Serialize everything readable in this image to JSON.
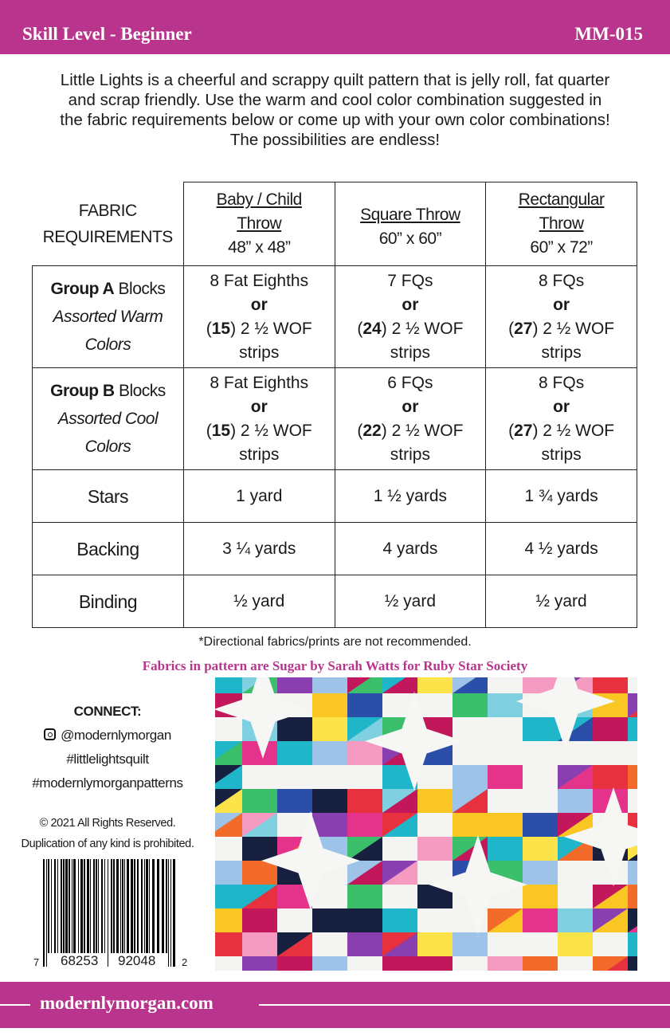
{
  "header": {
    "skill": "Skill Level - Beginner",
    "code": "MM-015"
  },
  "intro": [
    "Little Lights is a cheerful and scrappy quilt pattern that is jelly roll, fat quarter",
    "and scrap friendly.  Use the warm and cool color combination suggested in",
    "the fabric requirements below or come up with your own color combinations!",
    "The possibilities are endless!"
  ],
  "table": {
    "corner": [
      "FABRIC",
      "REQUIREMENTS"
    ],
    "columns": [
      {
        "name1": "Baby / Child",
        "name2": "Throw",
        "size": "48” x 48”"
      },
      {
        "name1": "Square Throw",
        "name2": "",
        "size": "60” x 60”"
      },
      {
        "name1": "Rectangular",
        "name2": "Throw",
        "size": "60” x 72”"
      }
    ],
    "groupA": {
      "bold": "Group A",
      "rest": " Blocks",
      "sub1": "Assorted Warm",
      "sub2": "Colors",
      "cells": [
        {
          "a": "8 Fat Eighths",
          "n": "15"
        },
        {
          "a": "7 FQs",
          "n": "24"
        },
        {
          "a": "8 FQs",
          "n": "27"
        }
      ]
    },
    "groupB": {
      "bold": "Group B",
      "rest": " Blocks",
      "sub1": "Assorted Cool",
      "sub2": "Colors",
      "cells": [
        {
          "a": "8 Fat Eighths",
          "n": "15"
        },
        {
          "a": "6 FQs",
          "n": "22"
        },
        {
          "a": "8 FQs",
          "n": "27"
        }
      ]
    },
    "or": "or",
    "strips_suffix": " 2 ½ WOF",
    "strips": "strips",
    "rows": [
      {
        "label": "Stars",
        "values": [
          "1 yard",
          "1 ½ yards",
          "1 ¾ yards"
        ]
      },
      {
        "label": "Backing",
        "values": [
          "3 ¼ yards",
          "4 yards",
          "4 ½ yards"
        ]
      },
      {
        "label": "Binding",
        "values": [
          "½ yard",
          "½ yard",
          "½ yard"
        ]
      }
    ]
  },
  "note": "*Directional fabrics/prints are not recommended.",
  "fabrics": "Fabrics in pattern are Sugar by Sarah Watts for Ruby Star Society",
  "connect": {
    "title": "CONNECT:",
    "instagram": "@modernlymorgan",
    "tag1": "#littlelightsquilt",
    "tag2": "#modernlymorganpatterns",
    "icon": "instagram-icon"
  },
  "copyright": [
    "© 2021  All Rights Reserved.",
    "Duplication of any kind is prohibited."
  ],
  "barcode": {
    "d1": "7",
    "d2": "68253",
    "d3": "92048",
    "d4": "2"
  },
  "footer": {
    "site": "modernlymorgan.com"
  },
  "colors": {
    "brand": "#b9348c",
    "quilt_palette": [
      "#e8313f",
      "#f26b2a",
      "#f9c623",
      "#1fb6c9",
      "#2b4fa8",
      "#8a3fb0",
      "#e5338b",
      "#f59ac0",
      "#17203f",
      "#3bbf6a",
      "#9ec3e8",
      "#fde34a",
      "#c2185b",
      "#7fd0e0"
    ]
  }
}
